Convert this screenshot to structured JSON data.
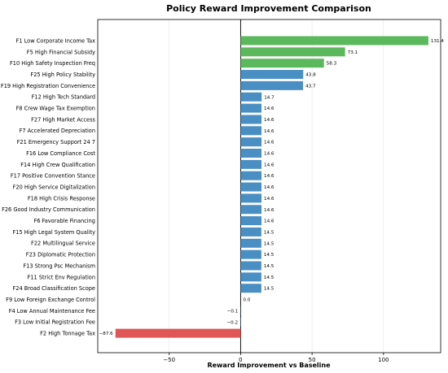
{
  "chart_data": {
    "type": "bar",
    "orientation": "horizontal",
    "title": "Policy Reward Improvement Comparison",
    "xlabel": "Reward Improvement vs Baseline",
    "ylabel": "",
    "xlim": [
      -100,
      140
    ],
    "xticks": [
      -50,
      0,
      50,
      100
    ],
    "xtick_labels": [
      "−50",
      "0",
      "50",
      "100"
    ],
    "grid": "vertical",
    "categories": [
      "F1 Low Corporate Income Tax",
      "F5 High Financial Subsidy",
      "F10 High Safety Inspection Freq",
      "F25 High Policy Stability",
      "F19 High Registration Convenience",
      "F12 High Tech Standard",
      "F8 Crew Wage Tax Exemption",
      "F27 High Market Access",
      "F7 Accelerated Depreciation",
      "F21 Emergency Support 24 7",
      "F16 Low Compliance Cost",
      "F14 High Crew Qualification",
      "F17 Positive Convention Stance",
      "F20 High Service Digitalization",
      "F18 High Crisis Response",
      "F26 Good Industry Communication",
      "F6 Favorable Financing",
      "F15 High Legal System Quality",
      "F22 Multilingual Service",
      "F23 Diplomatic Protection",
      "F13 Strong Psc Mechanism",
      "F11 Strict Env Regulation",
      "F24 Broad Classification Scope",
      "F9 Low Foreign Exchange Control",
      "F4 Low Annual Maintenance Fee",
      "F3 Low Initial Registration Fee",
      "F2 High Tonnage Tax"
    ],
    "values": [
      131.4,
      73.1,
      58.3,
      43.8,
      43.7,
      14.7,
      14.6,
      14.6,
      14.6,
      14.6,
      14.6,
      14.6,
      14.6,
      14.6,
      14.6,
      14.6,
      14.6,
      14.5,
      14.5,
      14.5,
      14.5,
      14.5,
      14.5,
      0.0,
      -0.1,
      -0.2,
      -87.6
    ],
    "value_labels": [
      "131.4",
      "73.1",
      "58.3",
      "43.8",
      "43.7",
      "14.7",
      "14.6",
      "14.6",
      "14.6",
      "14.6",
      "14.6",
      "14.6",
      "14.6",
      "14.6",
      "14.6",
      "14.6",
      "14.6",
      "14.5",
      "14.5",
      "14.5",
      "14.5",
      "14.5",
      "14.5",
      "0.0",
      "−0.1",
      "−0.2",
      "−87.6"
    ],
    "bar_colors": [
      "#5cb85c",
      "#5cb85c",
      "#5cb85c",
      "#4a8fc4",
      "#4a8fc4",
      "#4a8fc4",
      "#4a8fc4",
      "#4a8fc4",
      "#4a8fc4",
      "#4a8fc4",
      "#4a8fc4",
      "#4a8fc4",
      "#4a8fc4",
      "#4a8fc4",
      "#4a8fc4",
      "#4a8fc4",
      "#4a8fc4",
      "#4a8fc4",
      "#4a8fc4",
      "#4a8fc4",
      "#4a8fc4",
      "#4a8fc4",
      "#4a8fc4",
      "#4a8fc4",
      "#4a8fc4",
      "#4a8fc4",
      "#e05656"
    ]
  }
}
